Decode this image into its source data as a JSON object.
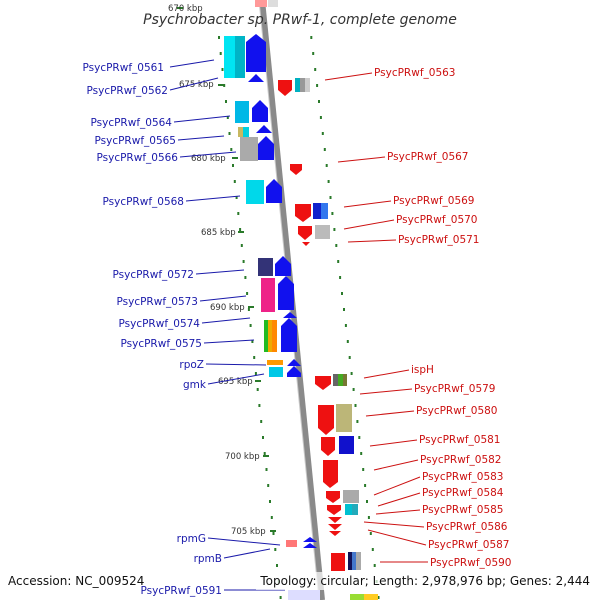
{
  "title": "Psychrobacter sp. PRwf-1, complete genome",
  "footer": {
    "accession": "Accession: NC_009524",
    "topology": "Topology: circular; Length: 2,978,976 bp; Genes: 2,444"
  },
  "ticks": [
    {
      "label": "670 kbp"
    },
    {
      "label": "675 kbp"
    },
    {
      "label": "680 kbp"
    },
    {
      "label": "685 kbp"
    },
    {
      "label": "690 kbp"
    },
    {
      "label": "695 kbp"
    },
    {
      "label": "700 kbp"
    },
    {
      "label": "705 kbp"
    }
  ],
  "left_labels": [
    "PsycPRwf_0561",
    "PsycPRwf_0562",
    "PsycPRwf_0564",
    "PsycPRwf_0565",
    "PsycPRwf_0566",
    "PsycPRwf_0568",
    "PsycPRwf_0572",
    "PsycPRwf_0573",
    "PsycPRwf_0574",
    "PsycPRwf_0575",
    "rpoZ",
    "gmk",
    "rpmG",
    "rpmB",
    "PsycPRwf_0591"
  ],
  "right_labels": [
    "PsycPRwf_0563",
    "PsycPRwf_0567",
    "PsycPRwf_0569",
    "PsycPRwf_0570",
    "PsycPRwf_0571",
    "ispH",
    "PsycPRwf_0579",
    "PsycPRwf_0580",
    "PsycPRwf_0581",
    "PsycPRwf_0582",
    "PsycPRwf_0583",
    "PsycPRwf_0584",
    "PsycPRwf_0585",
    "PsycPRwf_0586",
    "PsycPRwf_0587",
    "PsycPRwf_0590"
  ],
  "colors": {
    "left_label": "#1a1aaa",
    "right_label": "#cc1111",
    "backbone": "#888888",
    "tick_mark": "#2a7a2a"
  }
}
